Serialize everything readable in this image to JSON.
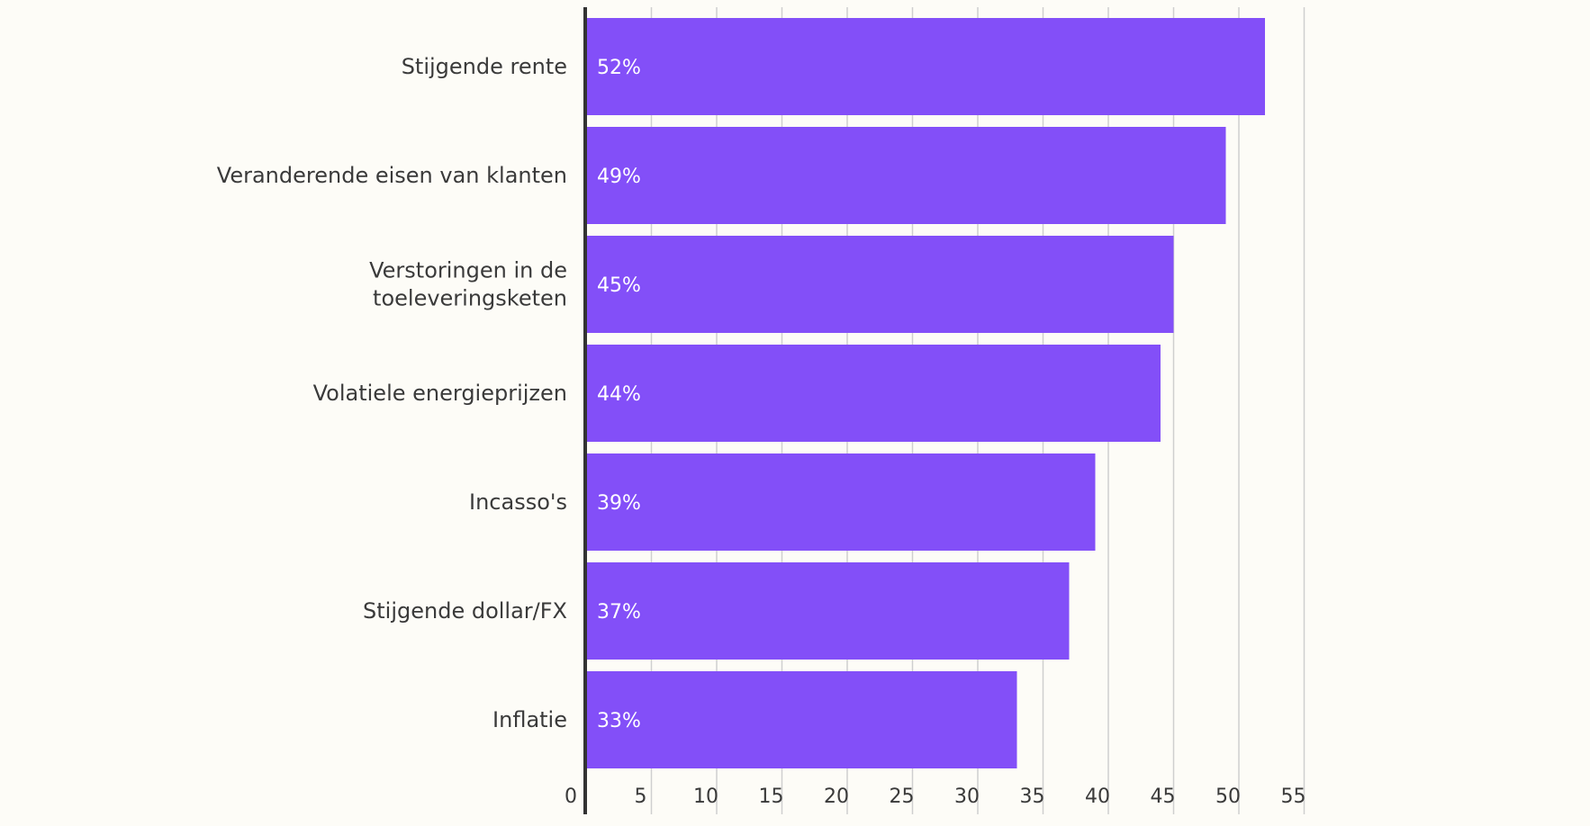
{
  "colors": {
    "bar": "#834ff8",
    "background": "#fdfcf7",
    "text": "#3a3a3a",
    "grid": "#cfcfcf",
    "axis": "#333333"
  },
  "chart_data": {
    "type": "bar",
    "orientation": "horizontal",
    "title": "",
    "xlabel": "",
    "ylabel": "",
    "categories": [
      "Stijgende rente",
      "Veranderende eisen van klanten",
      "Verstoringen in de toeleveringsketen",
      "Volatiele energieprijzen",
      "Incasso's",
      "Stijgende dollar/FX",
      "Inflatie"
    ],
    "category_lines": [
      [
        "Stijgende rente"
      ],
      [
        "Veranderende eisen van klanten"
      ],
      [
        "Verstoringen in de",
        "toeleveringsketen"
      ],
      [
        "Volatiele energieprijzen"
      ],
      [
        "Incasso's"
      ],
      [
        "Stijgende dollar/FX"
      ],
      [
        "Inflatie"
      ]
    ],
    "values": [
      52,
      49,
      45,
      44,
      39,
      37,
      33
    ],
    "value_labels": [
      "52%",
      "49%",
      "45%",
      "44%",
      "39%",
      "37%",
      "33%"
    ],
    "xlim": [
      0,
      55
    ],
    "ticks": [
      0,
      5,
      10,
      15,
      20,
      25,
      30,
      35,
      40,
      45,
      50,
      55
    ],
    "grid": true,
    "legend": "none"
  }
}
